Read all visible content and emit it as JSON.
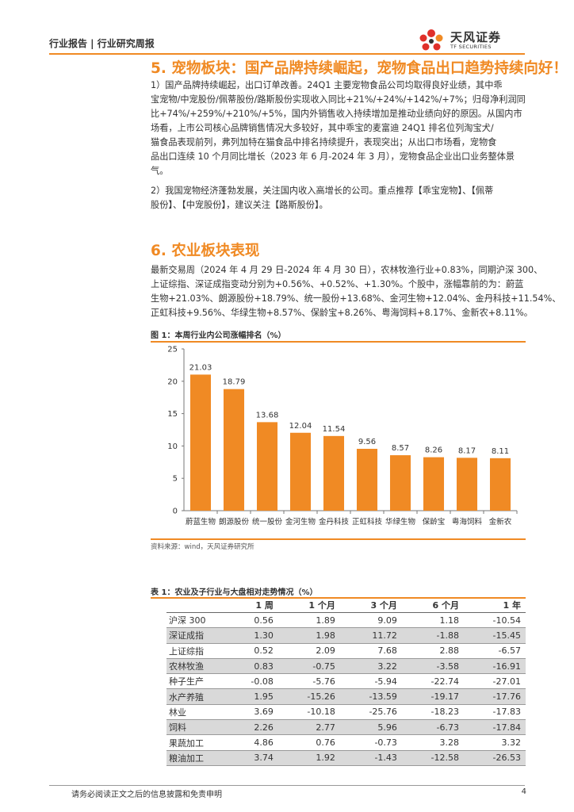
{
  "header": {
    "report_type": "行业报告 | 行业研究周报",
    "logo_name": "天风证券",
    "logo_en": "TF SECURITIES"
  },
  "section5": {
    "title": "5. 宠物板块：国产品牌持续崛起，宠物食品出口趋势持续向好！",
    "para1": [
      "1）国产品牌持续崛起，出口订单改善。24Q1 主要宠物食品公司均取得良好业绩，其中乖",
      "宝宠物/中宠股份/佩蒂股份/路斯股份实现收入同比+21%/+24%/+142%/+7%；归母净利润同",
      "比+74%/+259%/+210%/+5%，国内外销售收入持续增加是推动业绩向好的原因。从国内市",
      "场看，上市公司核心品牌销售情况大多较好，其中乖宝的麦富迪 24Q1 排名位列淘宝犬/",
      "猫食品表现前列，弗列加特在猫食品中排名持续提升，表现突出；从出口市场看，宠物食",
      "品出口连续 10 个月同比增长（2023 年 6 月-2024 年 3 月），宠物食品企业出口业务整体景",
      "气。"
    ],
    "para2": [
      "2）我国宠物经济蓬勃发展，关注国内收入高增长的公司。重点推荐【乖宝宠物】、【佩蒂",
      "股份】、【中宠股份】，建议关注【路斯股份】。"
    ]
  },
  "section6": {
    "title": "6. 农业板块表现",
    "para": [
      "最新交易周（2024 年 4 月 29 日-2024 年 4 月 30 日），农林牧渔行业+0.83%，同期沪深 300、",
      "上证综指、深证成指变动分别为+0.56%、+0.52%、+1.30%。个股中，涨幅靠前的为：蔚蓝",
      "生物+21.03%、朗源股份+18.79%、统一股份+13.68%、金河生物+12.04%、金丹科技+11.54%、",
      "正虹科技+9.56%、华绿生物+8.57%、保龄宝+8.26%、粤海饲料+8.17%、金新农+8.11%。"
    ]
  },
  "figure1": {
    "title": "图 1：本周行业内公司涨幅排名（%）",
    "source": "资料来源：wind，天风证券研究所"
  },
  "chart_data": {
    "type": "bar",
    "categories": [
      "蔚蓝生物",
      "朗源股份",
      "统一股份",
      "金河生物",
      "金丹科技",
      "正虹科技",
      "华绿生物",
      "保龄宝",
      "粤海饲料",
      "金新农"
    ],
    "values": [
      21.03,
      18.79,
      13.68,
      12.04,
      11.54,
      9.56,
      8.57,
      8.26,
      8.17,
      8.11
    ],
    "value_labels": [
      "21.03",
      "18.79",
      "13.68",
      "12.04",
      "11.54",
      "9.56",
      "8.57",
      "8.26",
      "8.17",
      "8.11"
    ],
    "yticks": [
      "0",
      "5",
      "10",
      "15",
      "20",
      "25"
    ],
    "ylim": [
      0,
      25
    ],
    "bar_color": "#f08a24",
    "grid": false,
    "legend": "none"
  },
  "table1": {
    "title": "表 1：农业及子行业与大盘相对走势情况（%）",
    "headers": [
      "",
      "1 周",
      "1 个月",
      "3 个月",
      "6 个月",
      "1 年"
    ],
    "rows": [
      [
        "沪深 300",
        "0.56",
        "1.89",
        "9.09",
        "1.18",
        "-10.54"
      ],
      [
        "深证成指",
        "1.30",
        "1.98",
        "11.72",
        "-1.88",
        "-15.45"
      ],
      [
        "上证综指",
        "0.52",
        "2.09",
        "7.68",
        "2.88",
        "-6.57"
      ],
      [
        "农林牧渔",
        "0.83",
        "-0.75",
        "3.22",
        "-3.58",
        "-16.91"
      ],
      [
        "种子生产",
        "-0.08",
        "-5.76",
        "-5.94",
        "-22.74",
        "-27.01"
      ],
      [
        "水产养殖",
        "1.95",
        "-15.26",
        "-13.59",
        "-19.17",
        "-17.76"
      ],
      [
        "林业",
        "3.69",
        "-10.18",
        "-25.76",
        "-18.23",
        "-17.83"
      ],
      [
        "饲料",
        "2.26",
        "2.77",
        "5.96",
        "-6.73",
        "-17.84"
      ],
      [
        "果蔬加工",
        "4.86",
        "0.76",
        "-0.73",
        "3.28",
        "3.32"
      ],
      [
        "粮油加工",
        "3.74",
        "1.92",
        "-1.43",
        "-12.58",
        "-26.53"
      ]
    ]
  },
  "footer": {
    "disclaimer": "请务必阅读正文之后的信息披露和免责申明",
    "page_number": "4"
  },
  "colors": {
    "accent": "#f08a24",
    "logo_red": "#e0302a",
    "shade": "#d9d9d9"
  }
}
